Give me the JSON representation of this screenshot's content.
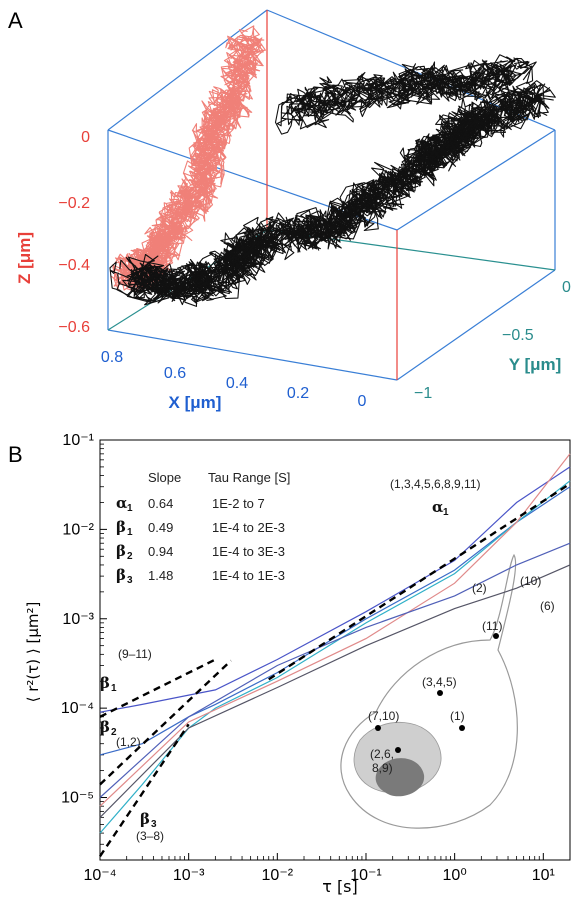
{
  "panelA": {
    "label": "A",
    "z_axis": {
      "label": "Z [μm]",
      "ticks": [
        "0",
        "−0.2",
        "−0.4",
        "−0.6"
      ],
      "color": "#e8403a"
    },
    "x_axis": {
      "label": "X [μm]",
      "ticks": [
        "0.8",
        "0.6",
        "0.4",
        "0.2",
        "0"
      ],
      "color": "#1f5fd0"
    },
    "y_axis": {
      "label": "Y [μm]",
      "ticks": [
        "0",
        "−0.5",
        "−1"
      ],
      "color": "#2a8c8c"
    },
    "box_color": "#3a7fd6",
    "trajectory_colors": {
      "projection": "#f08078",
      "trajectory": "#111111"
    }
  },
  "panelB": {
    "label": "B",
    "table": {
      "headers": [
        "Slope",
        "Tau Range [S]"
      ],
      "rows": [
        {
          "sym": "α",
          "sub": "1",
          "slope": "0.64",
          "range": "1E-2  to  7"
        },
        {
          "sym": "β",
          "sub": "1",
          "slope": "0.49",
          "range": "1E-4  to  2E-3"
        },
        {
          "sym": "β",
          "sub": "2",
          "slope": "0.94",
          "range": "1E-4  to  3E-3"
        },
        {
          "sym": "β",
          "sub": "3",
          "slope": "1.48",
          "range": "1E-4  to  1E-3"
        }
      ]
    },
    "curve_labels": [
      "(1,3,4,5,6,8,9,11)",
      "(2)",
      "(10)",
      "(6)",
      "(9–11)",
      "(1,2)",
      "(3–8)"
    ],
    "fit_labels": [
      {
        "sym": "α",
        "sub": "1"
      },
      {
        "sym": "β",
        "sub": "1"
      },
      {
        "sym": "β",
        "sub": "2"
      },
      {
        "sym": "β",
        "sub": "3"
      }
    ],
    "cell_labels": [
      "(11)",
      "(3,4,5)",
      "(7,10)",
      "(1)",
      "(2,6,",
      "8,9)"
    ]
  },
  "chart_data": {
    "type": "line",
    "xlabel": "τ   [s]",
    "ylabel": "⟨ r²(τ) ⟩ [μm²]",
    "xscale": "log",
    "yscale": "log",
    "xlim": [
      0.0001,
      20
    ],
    "ylim": [
      2e-06,
      0.1
    ],
    "xticks": [
      "10⁻⁴",
      "10⁻³",
      "10⁻²",
      "10⁻¹",
      "10⁰",
      "10¹"
    ],
    "yticks": [
      "10⁻¹",
      "10⁻²",
      "10⁻³",
      "10⁻⁴",
      "10⁻⁵"
    ],
    "series": [
      {
        "name": "(9–11)",
        "color": "#4a55c8",
        "x": [
          0.0001,
          0.0003,
          0.001,
          0.002,
          0.01,
          0.1,
          1,
          5,
          20
        ],
        "y": [
          9e-05,
          0.00011,
          0.00014,
          0.00016,
          0.00035,
          0.0012,
          0.0045,
          0.02,
          0.05
        ]
      },
      {
        "name": "(1,2)",
        "color": "#3a6cc8",
        "x": [
          0.0001,
          0.0003,
          0.001,
          0.002,
          0.01,
          0.1,
          1,
          5,
          20
        ],
        "y": [
          3e-05,
          4e-05,
          8e-05,
          0.00011,
          0.00025,
          0.001,
          0.0035,
          0.012,
          0.03
        ]
      },
      {
        "name": "(3–8)",
        "color": "#30b0c8",
        "x": [
          0.0001,
          0.0003,
          0.001,
          0.002,
          0.01,
          0.1,
          1,
          5,
          20
        ],
        "y": [
          4e-06,
          1.4e-05,
          6e-05,
          0.0001,
          0.00022,
          0.0009,
          0.0032,
          0.012,
          0.035
        ]
      },
      {
        "name": "(2)",
        "color": "#e08a8a",
        "x": [
          0.0001,
          0.001,
          0.01,
          0.1,
          1,
          5,
          20
        ],
        "y": [
          8e-06,
          7e-05,
          0.0002,
          0.0006,
          0.0025,
          0.012,
          0.07
        ]
      },
      {
        "name": "(10)",
        "color": "#5060b8",
        "x": [
          0.0001,
          0.001,
          0.01,
          0.1,
          1,
          5,
          20
        ],
        "y": [
          1e-05,
          8e-05,
          0.0003,
          0.0008,
          0.0018,
          0.004,
          0.007
        ]
      },
      {
        "name": "(6)",
        "color": "#555566",
        "x": [
          0.0001,
          0.001,
          0.01,
          0.1,
          1,
          5,
          20
        ],
        "y": [
          6e-06,
          6e-05,
          0.00017,
          0.0005,
          0.0013,
          0.0022,
          0.004
        ]
      }
    ],
    "fits": [
      {
        "name": "α1",
        "slope": 0.64,
        "x": [
          0.008,
          20
        ],
        "y": [
          0.00021,
          0.0324
        ]
      },
      {
        "name": "β1",
        "slope": 0.49,
        "x": [
          0.0001,
          0.002
        ],
        "y": [
          8e-05,
          0.00035
        ]
      },
      {
        "name": "β2",
        "slope": 0.94,
        "x": [
          0.0001,
          0.003
        ],
        "y": [
          1.4e-05,
          0.00034
        ]
      },
      {
        "name": "β3",
        "slope": 1.48,
        "x": [
          0.0001,
          0.001
        ],
        "y": [
          2.2e-06,
          6.6e-05
        ]
      }
    ]
  }
}
